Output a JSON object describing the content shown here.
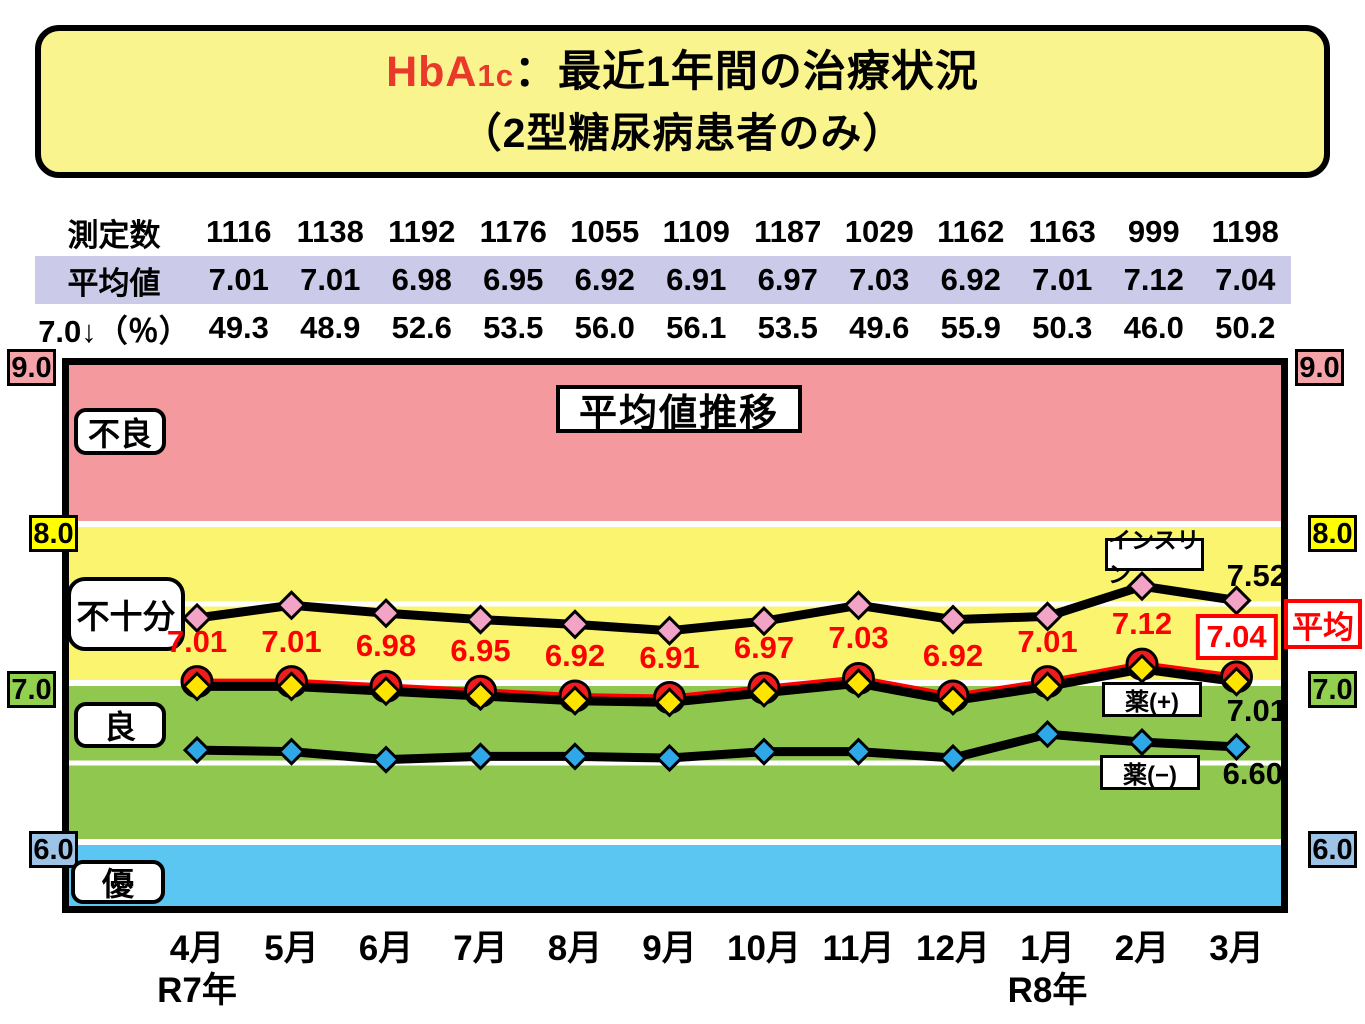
{
  "title": {
    "brand_main": "HbA",
    "brand_sub": "1c",
    "line1_rest": "：最近1年間の治療状況",
    "line2": "（2型糖尿病患者のみ）"
  },
  "table": {
    "rows": [
      {
        "header": "測定数",
        "highlight": false,
        "values": [
          "1116",
          "1138",
          "1192",
          "1176",
          "1055",
          "1109",
          "1187",
          "1029",
          "1162",
          "1163",
          "999",
          "1198"
        ]
      },
      {
        "header": "平均値",
        "highlight": true,
        "values": [
          "7.01",
          "7.01",
          "6.98",
          "6.95",
          "6.92",
          "6.91",
          "6.97",
          "7.03",
          "6.92",
          "7.01",
          "7.12",
          "7.04"
        ]
      },
      {
        "header": "7.0↓（％）",
        "highlight": false,
        "values": [
          "49.3",
          "48.9",
          "52.6",
          "53.5",
          "56.0",
          "56.1",
          "53.5",
          "49.6",
          "55.9",
          "50.3",
          "46.0",
          "50.2"
        ]
      }
    ]
  },
  "axis": {
    "ticks": [
      {
        "label": "9.0",
        "color": "#f4a3a8"
      },
      {
        "label": "8.0",
        "color": "#ffff00"
      },
      {
        "label": "7.0",
        "color": "#92d050"
      },
      {
        "label": "6.0",
        "color": "#9dc3e6"
      }
    ]
  },
  "chart_data": {
    "type": "line",
    "title": "平均値推移",
    "ylim": [
      5.6,
      9.0
    ],
    "x_categories": [
      "4月",
      "5月",
      "6月",
      "7月",
      "8月",
      "9月",
      "10月",
      "11月",
      "12月",
      "1月",
      "2月",
      "3月"
    ],
    "x_sub_labels": [
      {
        "index": 0,
        "label": "R7年"
      },
      {
        "index": 9,
        "label": "R8年"
      }
    ],
    "bands": [
      {
        "label": "不良",
        "from": 8.0,
        "to": 9.0,
        "color": "#f4999e"
      },
      {
        "label": "不十分",
        "from": 7.0,
        "to": 8.0,
        "color": "#faf46e"
      },
      {
        "label": "良",
        "from": 6.0,
        "to": 7.0,
        "color": "#90c84f"
      },
      {
        "label": "優",
        "from": 5.6,
        "to": 6.0,
        "color": "#5bc6f2"
      }
    ],
    "gridlines": [
      {
        "value": 8.0,
        "weight": 6
      },
      {
        "value": 7.5,
        "weight": 5
      },
      {
        "value": 7.0,
        "weight": 6
      },
      {
        "value": 6.5,
        "weight": 5
      },
      {
        "value": 6.0,
        "weight": 6
      }
    ],
    "series": [
      {
        "name": "インスリン",
        "line_color": "#000000",
        "line_width": 9,
        "marker": "diamond",
        "marker_color": "#f2a3c6",
        "marker_size": 13,
        "end_label": "7.52",
        "values": [
          7.41,
          7.49,
          7.44,
          7.4,
          7.37,
          7.33,
          7.39,
          7.49,
          7.4,
          7.42,
          7.61,
          7.52
        ]
      },
      {
        "name": "薬(−)",
        "line_color": "#000000",
        "line_width": 9,
        "marker": "diamond",
        "marker_color": "#2fa8e8",
        "marker_size": 12,
        "end_label": "6.60",
        "values": [
          6.58,
          6.57,
          6.52,
          6.54,
          6.54,
          6.53,
          6.57,
          6.57,
          6.53,
          6.68,
          6.63,
          6.6
        ]
      },
      {
        "name": "平均",
        "line_color": "#ff0000",
        "line_width": 6,
        "marker": "circle",
        "marker_color": "#ee1c1c",
        "marker_size": 15,
        "point_labels": [
          "7.01",
          "7.01",
          "6.98",
          "6.95",
          "6.92",
          "6.91",
          "6.97",
          "7.03",
          "6.92",
          "7.01",
          "7.12",
          "7.04"
        ],
        "last_label_boxed": true,
        "values": [
          7.01,
          7.01,
          6.98,
          6.95,
          6.92,
          6.91,
          6.97,
          7.03,
          6.92,
          7.01,
          7.12,
          7.04
        ]
      },
      {
        "name": "薬(+)",
        "line_color": "#000000",
        "line_width": 9,
        "marker": "diamond",
        "marker_color": "#ffe400",
        "marker_size": 13,
        "end_label": "7.01",
        "values": [
          6.98,
          6.98,
          6.95,
          6.92,
          6.89,
          6.88,
          6.94,
          7.0,
          6.89,
          6.98,
          7.09,
          7.01
        ]
      }
    ]
  }
}
